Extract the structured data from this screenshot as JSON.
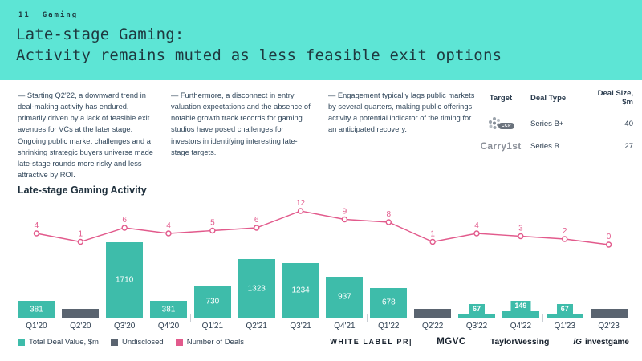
{
  "page": {
    "number": "11",
    "section": "Gaming"
  },
  "title": {
    "line1": "Late-stage Gaming:",
    "line2": "Activity remains muted as less feasible exit options"
  },
  "columns": [
    "— Starting Q2'22, a downward trend in deal-making activity has endured, primarily driven by a lack of feasible exit avenues for VCs at the later stage. Ongoing public market challenges and a shrinking strategic buyers universe made late-stage rounds more risky and less attractive by ROI.",
    "— Furthermore, a disconnect in entry valuation expectations and the absence of notable growth track records for gaming studios have posed challenges for investors in identifying interesting late-stage targets.",
    "— Engagement typically lags public markets by several quarters, making public offerings activity a potential indicator of the timing for an anticipated recovery."
  ],
  "deals_table": {
    "headers": [
      "Target",
      "Deal Type",
      "Deal Size, $m"
    ],
    "rows": [
      {
        "target": "CCP",
        "target_logo": "ccp-games-dots-logo",
        "deal_type": "Series B+",
        "deal_size": "40"
      },
      {
        "target": "Carry1st",
        "deal_type": "Series B",
        "deal_size": "27"
      }
    ]
  },
  "chart_data": {
    "type": "bar",
    "title": "Late-stage Gaming Activity",
    "categories": [
      "Q1'20",
      "Q2'20",
      "Q3'20",
      "Q4'20",
      "Q1'21",
      "Q2'21",
      "Q3'21",
      "Q4'21",
      "Q1'22",
      "Q2'22",
      "Q3'22",
      "Q4'22",
      "Q1'23",
      "Q2'23"
    ],
    "series": [
      {
        "name": "Total Deal Value, $m",
        "type": "bar",
        "color": "#3EBCAA",
        "values": [
          381,
          null,
          1710,
          381,
          730,
          1323,
          1234,
          937,
          678,
          null,
          67,
          149,
          67,
          null
        ]
      },
      {
        "name": "Undisclosed",
        "type": "bar",
        "color": "#5A6470",
        "note": "null deal values are shown as short gray bars",
        "quarters": [
          "Q2'20",
          "Q2'22",
          "Q2'23"
        ]
      },
      {
        "name": "Number of Deals",
        "type": "line",
        "color": "#E25A8C",
        "values": [
          4,
          1,
          6,
          4,
          5,
          6,
          12,
          9,
          8,
          1,
          4,
          3,
          2,
          0
        ]
      }
    ],
    "ylim": [
      0,
      1710
    ],
    "line_ylim": [
      0,
      12
    ],
    "grid": false,
    "legend_position": "bottom-left",
    "axis_color": "#C9CED4",
    "year_separators_after_index": [
      3,
      7,
      11
    ]
  },
  "colors": {
    "header_band": "#5DE5D5",
    "title_text": "#1E393F",
    "body_text": "#31475B",
    "bar_teal": "#3EBCAA",
    "bar_gray": "#5A6470",
    "line_pink": "#E25A8C"
  },
  "footer": {
    "logos": [
      {
        "label": "WHITE LABEL PR|"
      },
      {
        "label": "MGVC"
      },
      {
        "label": "TaylorWessing"
      },
      {
        "icon": "iG",
        "label": "investgame"
      }
    ]
  }
}
